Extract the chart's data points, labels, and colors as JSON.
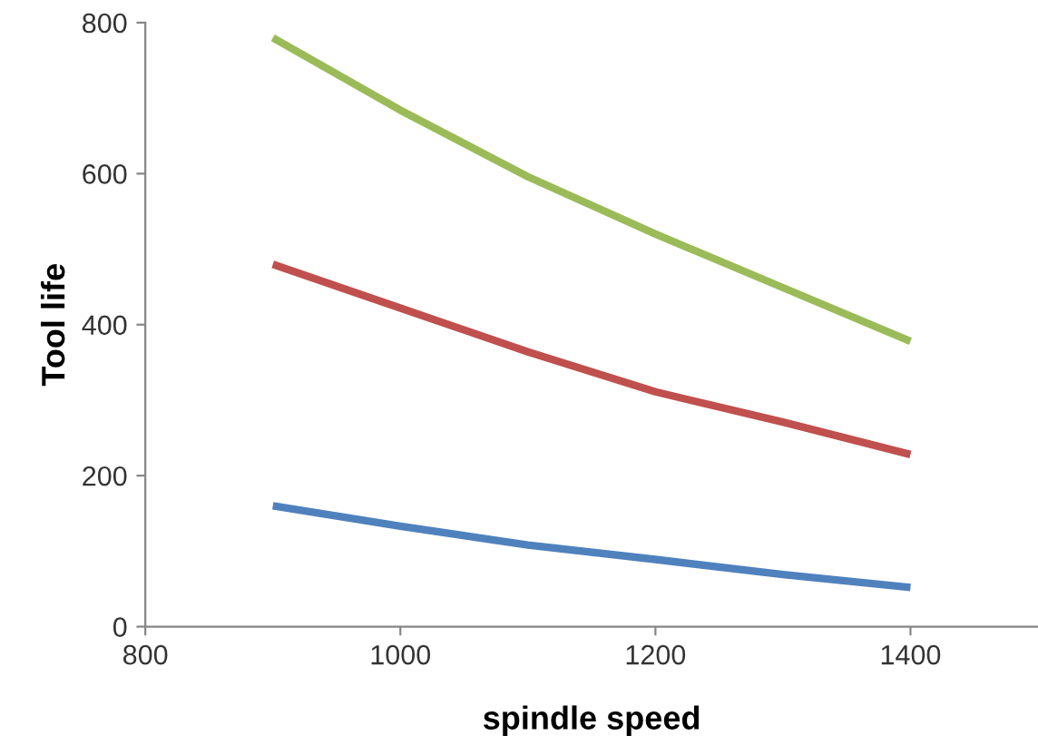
{
  "chart_data": {
    "type": "line",
    "xlabel": "spindle speed",
    "ylabel": "Tool life",
    "x": [
      900,
      1000,
      1100,
      1200,
      1300,
      1400
    ],
    "series": [
      {
        "color": "#4f81bd",
        "values": [
          160,
          133,
          108,
          89,
          69,
          52
        ]
      },
      {
        "color": "#c0504d",
        "values": [
          480,
          422,
          364,
          311,
          271,
          228
        ]
      },
      {
        "color": "#9bbb59",
        "values": [
          780,
          684,
          596,
          520,
          449,
          378
        ]
      }
    ],
    "xlim": [
      800,
      1500
    ],
    "xticks": [
      800,
      1000,
      1200,
      1400
    ],
    "ylim": [
      0,
      800
    ],
    "yticks": [
      0,
      200,
      400,
      600,
      800
    ],
    "grid": false,
    "marker": "none",
    "line_style": "solid"
  }
}
